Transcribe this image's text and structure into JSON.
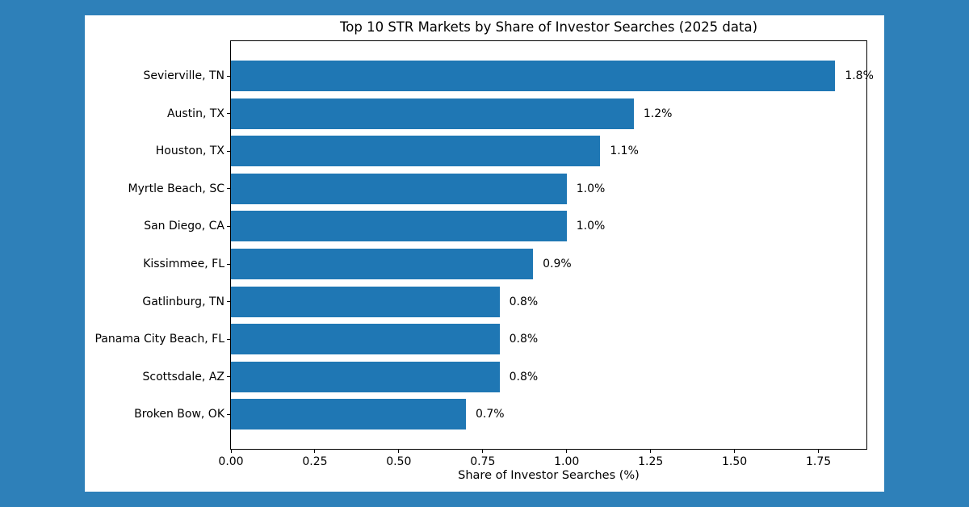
{
  "page": {
    "background_color": "#2e80b9",
    "card_color": "#ffffff"
  },
  "chart_data": {
    "type": "bar",
    "orientation": "horizontal",
    "title": "Top 10 STR Markets by Share of Investor Searches (2025 data)",
    "xlabel": "Share of Investor Searches (%)",
    "categories": [
      "Sevierville, TN",
      "Austin, TX",
      "Houston, TX",
      "Myrtle Beach, SC",
      "San Diego, CA",
      "Kissimmee, FL",
      "Gatlinburg, TN",
      "Panama City Beach, FL",
      "Scottsdale, AZ",
      "Broken Bow, OK"
    ],
    "values": [
      1.8,
      1.2,
      1.1,
      1.0,
      1.0,
      0.9,
      0.8,
      0.8,
      0.8,
      0.7
    ],
    "value_labels": [
      "1.8%",
      "1.2%",
      "1.1%",
      "1.0%",
      "1.0%",
      "0.9%",
      "0.8%",
      "0.8%",
      "0.8%",
      "0.7%"
    ],
    "xticks": [
      {
        "value": 0.0,
        "label": "0.00"
      },
      {
        "value": 0.25,
        "label": "0.25"
      },
      {
        "value": 0.5,
        "label": "0.50"
      },
      {
        "value": 0.75,
        "label": "0.75"
      },
      {
        "value": 1.0,
        "label": "1.00"
      },
      {
        "value": 1.25,
        "label": "1.25"
      },
      {
        "value": 1.5,
        "label": "1.50"
      },
      {
        "value": 1.75,
        "label": "1.75"
      }
    ],
    "xlim": [
      0,
      1.893
    ],
    "bar_color": "#1f77b4",
    "grid": false,
    "legend": false
  }
}
